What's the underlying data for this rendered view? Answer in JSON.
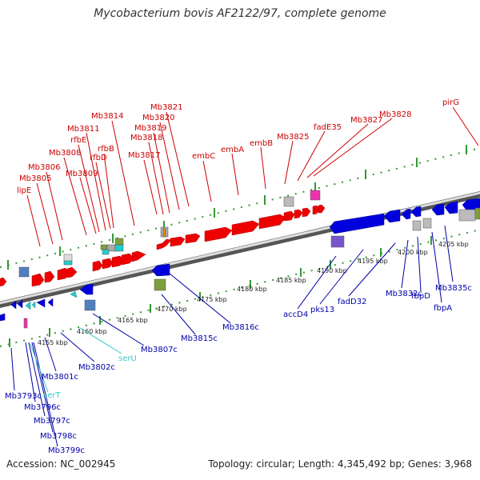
{
  "title": "Mycobacterium bovis AF2122/97, complete genome",
  "footer": {
    "accession": "Accession: NC_002945",
    "summary": "Topology: circular; Length: 4,345,492 bp; Genes: 3,968"
  },
  "colors": {
    "forward_gene": "#ff0000",
    "reverse_gene": "#0000dd",
    "trna": "#33cccc",
    "backbone": "#888888",
    "tick": "#339933"
  },
  "scale_labels": [
    "4155 kbp",
    "4160 kbp",
    "4165 kbp",
    "4170 kbp",
    "4175 kbp",
    "4180 kbp",
    "4185 kbp",
    "4190 kbp",
    "4195 kbp",
    "4200 kbp",
    "4205 kbp"
  ],
  "forward_labels": [
    "lipE",
    "Mb3805",
    "Mb3806",
    "Mb3808",
    "Mb3809",
    "rfbE",
    "Mb3811",
    "rfbD",
    "rfbB",
    "Mb3814",
    "Mb3817",
    "Mb3818",
    "Mb3819",
    "Mb3820",
    "Mb3821",
    "embC",
    "embA",
    "embB",
    "Mb3825",
    "fadE35",
    "Mb3827",
    "Mb3828",
    "pirG"
  ],
  "reverse_labels": [
    "Mb3793c",
    "Mb3796c",
    "Mb3797c",
    "Mb3798c",
    "Mb3799c",
    "Mb3801c",
    "Mb3802c",
    "Mb3807c",
    "Mb3815c",
    "Mb3816c",
    "accD4",
    "pks13",
    "fadD32",
    "Mb3832c",
    "fbpD",
    "fbpA",
    "Mb3835c"
  ],
  "trna_labels": [
    "serT",
    "serU"
  ]
}
